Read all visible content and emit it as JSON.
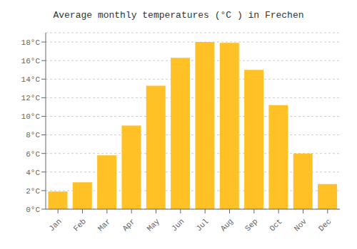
{
  "chart_data": {
    "type": "bar",
    "title": "Average monthly temperatures (°C ) in Frechen",
    "categories": [
      "Jan",
      "Feb",
      "Mar",
      "Apr",
      "May",
      "Jun",
      "Jul",
      "Aug",
      "Sep",
      "Oct",
      "Nov",
      "Dec"
    ],
    "values": [
      1.9,
      2.9,
      5.8,
      9.0,
      13.3,
      16.3,
      18.0,
      17.9,
      15.0,
      11.2,
      6.0,
      2.7
    ],
    "color": "#FFC125",
    "ylim": [
      0,
      19
    ],
    "yticks": [
      {
        "value": 0,
        "label": "0°C"
      },
      {
        "value": 2,
        "label": "2°C"
      },
      {
        "value": 4,
        "label": "4°C"
      },
      {
        "value": 6,
        "label": "6°C"
      },
      {
        "value": 8,
        "label": "8°C"
      },
      {
        "value": 10,
        "label": "10°C"
      },
      {
        "value": 12,
        "label": "12°C"
      },
      {
        "value": 14,
        "label": "14°C"
      },
      {
        "value": 16,
        "label": "16°C"
      },
      {
        "value": 18,
        "label": "18°C"
      }
    ],
    "grid": true
  }
}
